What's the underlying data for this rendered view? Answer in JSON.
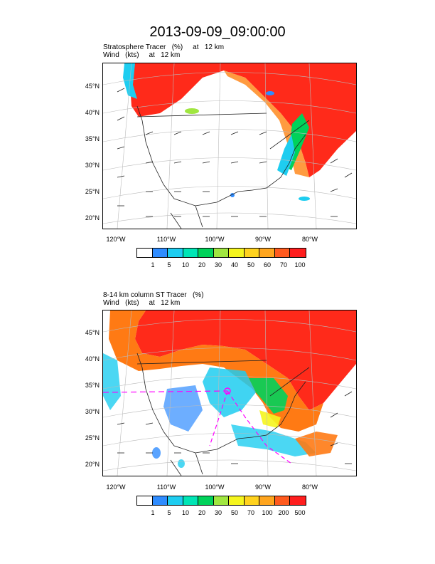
{
  "title": "2013-09-09_09:00:00",
  "panel1": {
    "subtitle_line1": "Stratosphere Tracer   (%)     at   12 km",
    "subtitle_line2": "Wind   (kts)     at   12 km",
    "colorbar_labels": [
      "1",
      "5",
      "10",
      "20",
      "30",
      "40",
      "50",
      "60",
      "70",
      "100"
    ]
  },
  "panel2": {
    "subtitle_line1": "8-14 km column ST Tracer   (%)",
    "subtitle_line2": "Wind   (kts)     at   12 km",
    "colorbar_labels": [
      "1",
      "5",
      "10",
      "20",
      "30",
      "50",
      "70",
      "100",
      "200",
      "500"
    ]
  },
  "lat_labels": [
    "45°N",
    "40°N",
    "35°N",
    "30°N",
    "25°N",
    "20°N"
  ],
  "lon_labels": [
    "120°W",
    "110°W",
    "100°W",
    "90°W",
    "80°W"
  ],
  "colors": {
    "scale": [
      "#ffffff",
      "#2f8cff",
      "#1ecdf0",
      "#00e5b5",
      "#00d25a",
      "#a0e640",
      "#f5f51e",
      "#ffd21e",
      "#ffa51e",
      "#ff5a1e",
      "#ff1e1e"
    ],
    "high": "#ff2a1a",
    "orange": "#ff7a14",
    "green": "#00d25a",
    "cyan": "#1ecdf0",
    "blue": "#2f8cff",
    "trajectory": "#ff00ff"
  }
}
